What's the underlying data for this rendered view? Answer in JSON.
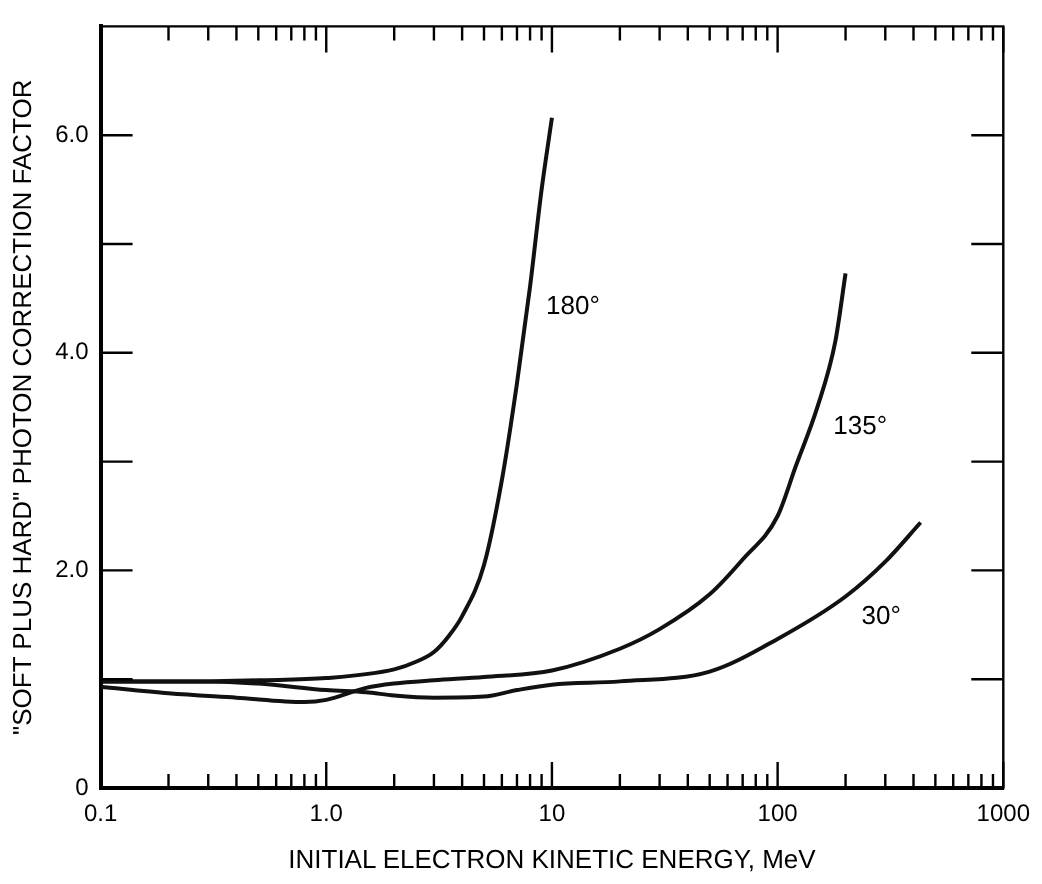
{
  "chart_data": {
    "type": "line",
    "xlabel": "INITIAL ELECTRON KINETIC ENERGY, MeV",
    "ylabel": "\"SOFT PLUS HARD\" PHOTON CORRECTION FACTOR",
    "log": "x",
    "grid": false,
    "legend": false,
    "marker": "none",
    "line_style": "solid",
    "xlim": [
      0.1,
      1000
    ],
    "ylim": [
      0,
      7
    ],
    "xticks": [
      0.1,
      {
        "value": 0.2,
        "label": null
      },
      {
        "value": 0.3,
        "label": null
      },
      {
        "value": 0.4,
        "label": null
      },
      {
        "value": 0.5,
        "label": null
      },
      {
        "value": 0.6,
        "label": null
      },
      {
        "value": 0.7,
        "label": null
      },
      {
        "value": 0.8,
        "label": null
      },
      {
        "value": 0.9,
        "label": null
      },
      {
        "value": 1,
        "label": "1.0"
      },
      {
        "value": 2,
        "label": null
      },
      {
        "value": 3,
        "label": null
      },
      {
        "value": 4,
        "label": null
      },
      {
        "value": 5,
        "label": null
      },
      {
        "value": 6,
        "label": null
      },
      {
        "value": 7,
        "label": null
      },
      {
        "value": 8,
        "label": null
      },
      {
        "value": 9,
        "label": null
      },
      10,
      {
        "value": 20,
        "label": null
      },
      {
        "value": 30,
        "label": null
      },
      {
        "value": 40,
        "label": null
      },
      {
        "value": 50,
        "label": null
      },
      {
        "value": 60,
        "label": null
      },
      {
        "value": 70,
        "label": null
      },
      {
        "value": 80,
        "label": null
      },
      {
        "value": 90,
        "label": null
      },
      100,
      {
        "value": 200,
        "label": null
      },
      {
        "value": 300,
        "label": null
      },
      {
        "value": 400,
        "label": null
      },
      {
        "value": 500,
        "label": null
      },
      {
        "value": 600,
        "label": null
      },
      {
        "value": 700,
        "label": null
      },
      {
        "value": 800,
        "label": null
      },
      {
        "value": 900,
        "label": null
      },
      1000
    ],
    "yticks": [
      0,
      {
        "value": 1,
        "label": null
      },
      {
        "value": 2,
        "label": "2.0"
      },
      {
        "value": 3,
        "label": null
      },
      {
        "value": 4,
        "label": "4.0"
      },
      {
        "value": 5,
        "label": null
      },
      {
        "value": 6,
        "label": "6.0"
      }
    ],
    "series": [
      {
        "name": "180°",
        "color": "#111111",
        "x": [
          0.1,
          0.3,
          0.5,
          1,
          2,
          2.5,
          3,
          3.5,
          4,
          5,
          6,
          7,
          8,
          9,
          10
        ],
        "values": [
          0.98,
          0.98,
          0.99,
          1.01,
          1.09,
          1.16,
          1.25,
          1.4,
          1.58,
          2.05,
          2.83,
          3.72,
          4.61,
          5.5,
          6.16
        ]
      },
      {
        "name": "135°",
        "color": "#111111",
        "x": [
          0.1,
          0.2,
          0.4,
          0.8,
          1,
          1.5,
          2,
          3,
          5,
          10,
          20,
          30,
          50,
          70,
          100,
          120,
          150,
          180,
          200
        ],
        "values": [
          0.93,
          0.87,
          0.83,
          0.79,
          0.81,
          0.92,
          0.96,
          0.99,
          1.02,
          1.08,
          1.28,
          1.46,
          1.78,
          2.1,
          2.5,
          2.95,
          3.5,
          4.1,
          4.73
        ]
      },
      {
        "name": "30°",
        "color": "#111111",
        "x": [
          0.1,
          0.3,
          0.5,
          1,
          1.5,
          2,
          3,
          5,
          7,
          10,
          20,
          50,
          100,
          200,
          300,
          430
        ],
        "values": [
          0.98,
          0.98,
          0.96,
          0.9,
          0.88,
          0.85,
          0.83,
          0.84,
          0.9,
          0.95,
          0.98,
          1.07,
          1.37,
          1.76,
          2.08,
          2.44
        ]
      }
    ]
  }
}
